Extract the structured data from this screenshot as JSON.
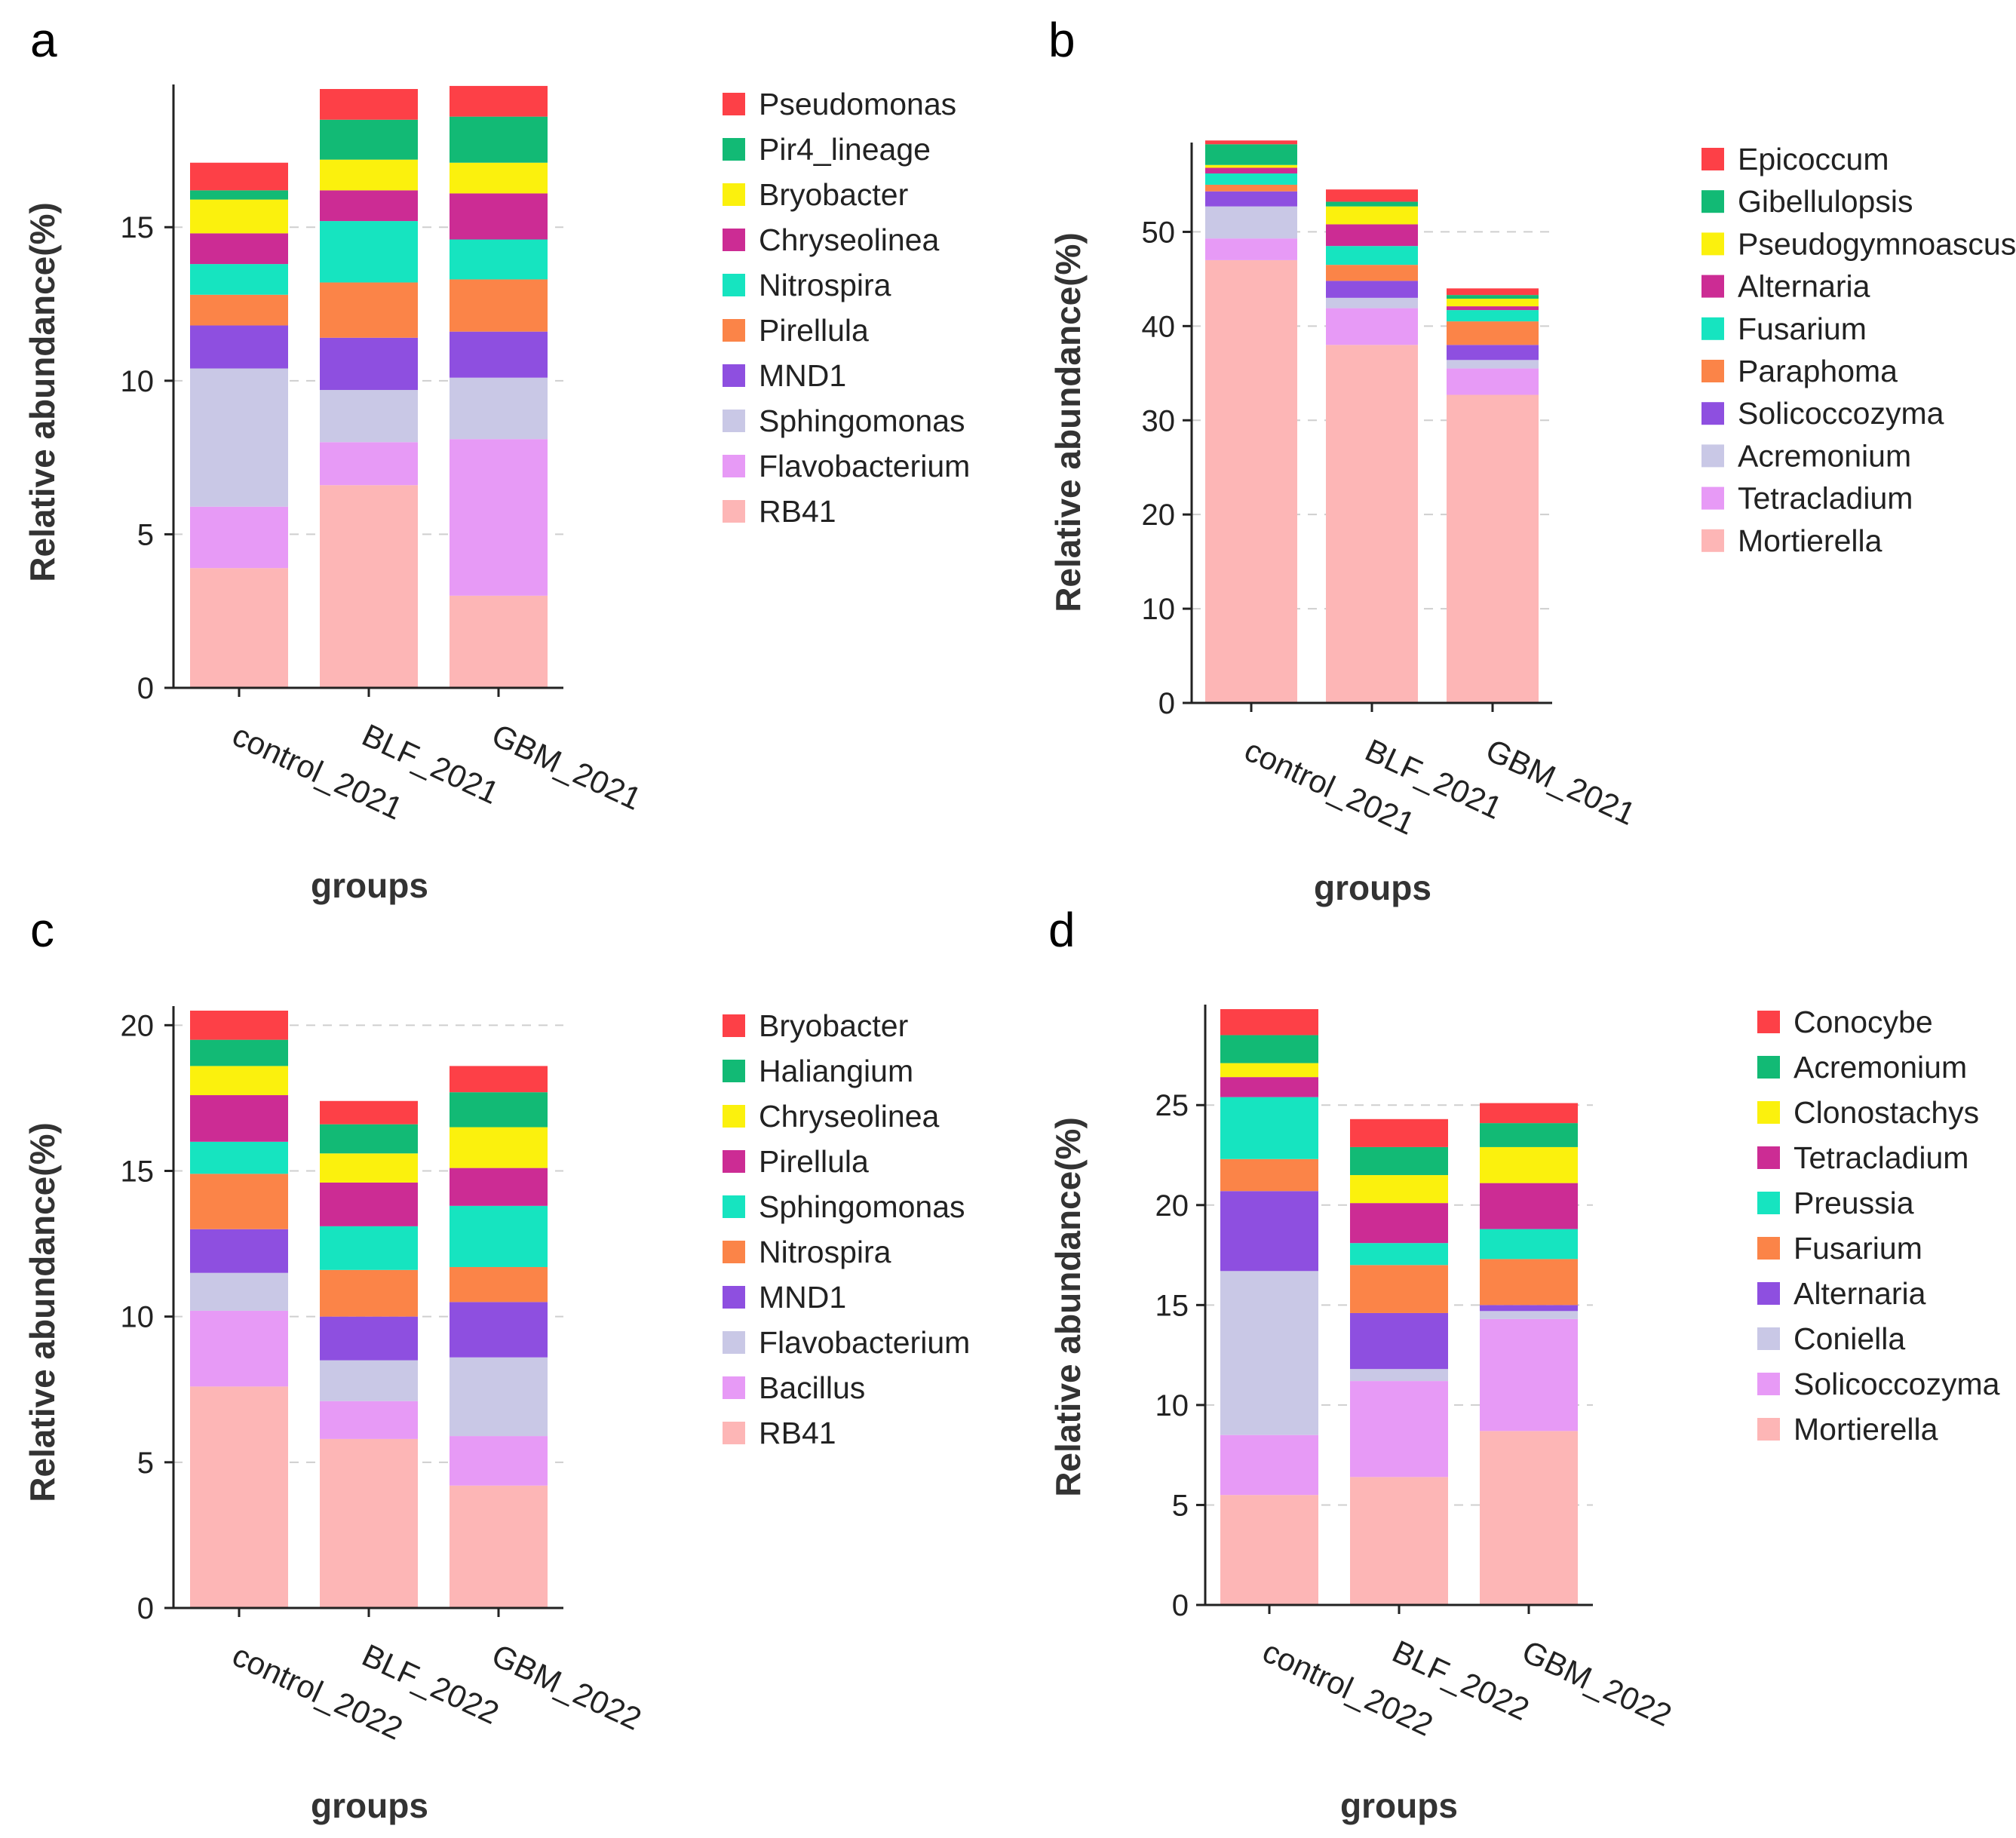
{
  "colors": [
    "#fdb6b6",
    "#e79af6",
    "#c9c8e6",
    "#8e4fe0",
    "#fb8448",
    "#16e4c0",
    "#cc2c94",
    "#fbf10d",
    "#12ba75",
    "#fd4047"
  ],
  "chart_data": [
    {
      "panel": "a",
      "type": "bar",
      "stacked": true,
      "xlabel": "groups",
      "ylabel": "Relative abundance(%)",
      "ylim": [
        0,
        19.5
      ],
      "yticks": [
        0,
        5,
        10,
        15
      ],
      "categories": [
        "control_2021",
        "BLF_2021",
        "GBM_2021"
      ],
      "series": [
        {
          "name": "RB41",
          "values": [
            3.9,
            6.6,
            3.0
          ]
        },
        {
          "name": "Flavobacterium",
          "values": [
            2.0,
            1.4,
            5.1
          ]
        },
        {
          "name": "Sphingomonas",
          "values": [
            4.5,
            1.7,
            2.0
          ]
        },
        {
          "name": "MND1",
          "values": [
            1.4,
            1.7,
            1.5
          ]
        },
        {
          "name": "Pirellula",
          "values": [
            1.0,
            1.8,
            1.7
          ]
        },
        {
          "name": "Nitrospira",
          "values": [
            1.0,
            2.0,
            1.3
          ]
        },
        {
          "name": "Chryseolinea",
          "values": [
            1.0,
            1.0,
            1.5
          ]
        },
        {
          "name": "Bryobacter",
          "values": [
            1.1,
            1.0,
            1.0
          ]
        },
        {
          "name": "Pir4_lineage",
          "values": [
            0.3,
            1.3,
            1.5
          ]
        },
        {
          "name": "Pseudomonas",
          "values": [
            0.9,
            1.0,
            1.0
          ]
        }
      ]
    },
    {
      "panel": "b",
      "type": "bar",
      "stacked": true,
      "xlabel": "groups",
      "ylabel": "Relative abundance(%)",
      "ylim": [
        0,
        59
      ],
      "yticks": [
        0,
        10,
        20,
        30,
        40,
        50
      ],
      "categories": [
        "control_2021",
        "BLF_2021",
        "GBM_2021"
      ],
      "series": [
        {
          "name": "Mortierella",
          "values": [
            47.0,
            38.0,
            32.7
          ]
        },
        {
          "name": "Tetracladium",
          "values": [
            2.3,
            3.9,
            2.8
          ]
        },
        {
          "name": "Acremonium",
          "values": [
            3.4,
            1.1,
            0.9
          ]
        },
        {
          "name": "Solicoccozyma",
          "values": [
            1.6,
            1.8,
            1.6
          ]
        },
        {
          "name": "Paraphoma",
          "values": [
            0.7,
            1.7,
            2.5
          ]
        },
        {
          "name": "Fusarium",
          "values": [
            1.2,
            2.0,
            1.2
          ]
        },
        {
          "name": "Alternaria",
          "values": [
            0.6,
            2.3,
            0.4
          ]
        },
        {
          "name": "Pseudogymnoascus",
          "values": [
            0.3,
            1.9,
            0.8
          ]
        },
        {
          "name": "Gibellulopsis",
          "values": [
            2.2,
            0.5,
            0.4
          ]
        },
        {
          "name": "Epicoccum",
          "values": [
            0.4,
            1.3,
            0.7
          ]
        }
      ]
    },
    {
      "panel": "c",
      "type": "bar",
      "stacked": true,
      "xlabel": "groups",
      "ylabel": "Relative abundance(%)",
      "ylim": [
        0,
        20.5
      ],
      "yticks": [
        0,
        5,
        10,
        15,
        20
      ],
      "categories": [
        "control_2022",
        "BLF_2022",
        "GBM_2022"
      ],
      "series": [
        {
          "name": "RB41",
          "values": [
            7.6,
            5.8,
            4.2
          ]
        },
        {
          "name": "Bacillus",
          "values": [
            2.6,
            1.3,
            1.7
          ]
        },
        {
          "name": "Flavobacterium",
          "values": [
            1.3,
            1.4,
            2.7
          ]
        },
        {
          "name": "MND1",
          "values": [
            1.5,
            1.5,
            1.9
          ]
        },
        {
          "name": "Nitrospira",
          "values": [
            1.9,
            1.6,
            1.2
          ]
        },
        {
          "name": "Sphingomonas",
          "values": [
            1.1,
            1.5,
            2.1
          ]
        },
        {
          "name": "Pirellula",
          "values": [
            1.6,
            1.5,
            1.3
          ]
        },
        {
          "name": "Chryseolinea",
          "values": [
            1.0,
            1.0,
            1.4
          ]
        },
        {
          "name": "Haliangium",
          "values": [
            0.9,
            1.0,
            1.2
          ]
        },
        {
          "name": "Bryobacter",
          "values": [
            1.0,
            0.8,
            0.9
          ]
        }
      ]
    },
    {
      "panel": "d",
      "type": "bar",
      "stacked": true,
      "xlabel": "groups",
      "ylabel": "Relative abundance(%)",
      "ylim": [
        0,
        29.8
      ],
      "yticks": [
        0,
        5,
        10,
        15,
        20,
        25
      ],
      "categories": [
        "control_2022",
        "BLF_2022",
        "GBM_2022"
      ],
      "series": [
        {
          "name": "Mortierella",
          "values": [
            5.5,
            6.4,
            8.7
          ]
        },
        {
          "name": "Solicoccozyma",
          "values": [
            3.0,
            4.8,
            5.6
          ]
        },
        {
          "name": "Coniella",
          "values": [
            8.2,
            0.6,
            0.4
          ]
        },
        {
          "name": "Alternaria",
          "values": [
            4.0,
            2.8,
            0.3
          ]
        },
        {
          "name": "Fusarium",
          "values": [
            1.6,
            2.4,
            2.3
          ]
        },
        {
          "name": "Preussia",
          "values": [
            3.1,
            1.1,
            1.5
          ]
        },
        {
          "name": "Tetracladium",
          "values": [
            1.0,
            2.0,
            2.3
          ]
        },
        {
          "name": "Clonostachys",
          "values": [
            0.7,
            1.4,
            1.8
          ]
        },
        {
          "name": "Acremonium",
          "values": [
            1.4,
            1.4,
            1.2
          ]
        },
        {
          "name": "Conocybe",
          "values": [
            1.3,
            1.4,
            1.0
          ]
        }
      ]
    }
  ]
}
